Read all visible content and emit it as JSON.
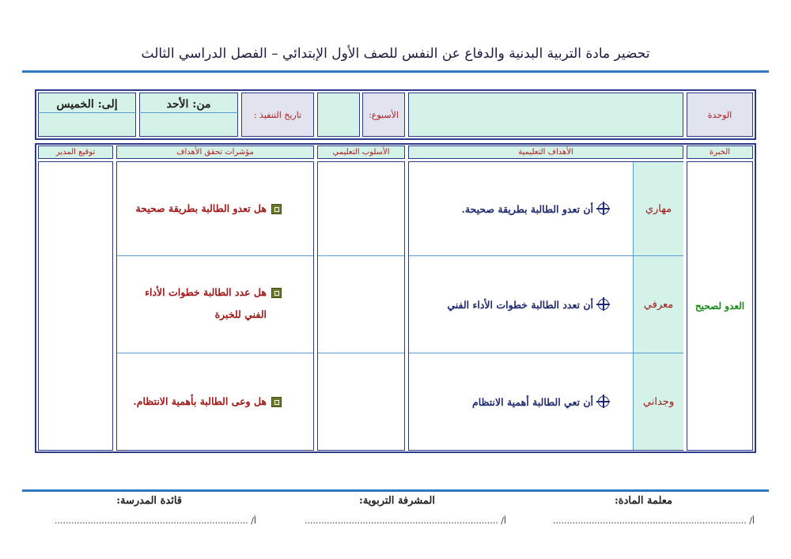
{
  "title": "تحضير مادة التربية البدنية والدفاع عن النفس للصف  الأول الإبتدائي – الفصل الدراسي الثالث",
  "info": {
    "unit_label": "الوحدة",
    "week_label": "الأسبوع:",
    "date_label": "تاريخ التنفيذ :",
    "from_label": "من: الأحد",
    "to_label": "إلى: الخميس"
  },
  "headers": {
    "experience": "الخبرة",
    "objectives": "الأهداف التعليمية",
    "method": "الأسلوب التعليمي",
    "indicators": "مؤشرات تحقق الأهداف",
    "signature": "توقيع المدير"
  },
  "experience": "العدو لصحيح",
  "rows": [
    {
      "type": "مهاري",
      "objective": "أن تعدو الطالبة بطريقة صحيحة.",
      "indicator": "هل تعدو الطالبة بطريقة صحيحة"
    },
    {
      "type": "معرفي",
      "objective": "أن تعدد الطالبة خطوات الأداء الفني",
      "indicator": "هل عدد الطالبة خطوات الأداء الفني للخبرة"
    },
    {
      "type": "وجداني",
      "objective": "أن تعي الطالبة أهمية الانتظام",
      "indicator": "هل وعى الطالبة بأهمية الانتظام."
    }
  ],
  "footer": [
    {
      "label": "معلمة المادة:",
      "line": "أ/ ......................................................................"
    },
    {
      "label": "المشرفة التربوية:",
      "line": "أ/ ......................................................................"
    },
    {
      "label": "قائدة المدرسة:",
      "line": "أ/ ......................................................................"
    }
  ],
  "colors": {
    "accent": "#2f78c4",
    "border": "#2b3a8a",
    "mint": "#d5f2e8",
    "grey": "#e1e3ef",
    "label_red": "#b02020",
    "goal_blue": "#1f2a70",
    "experience_green": "#1a8a1a"
  }
}
